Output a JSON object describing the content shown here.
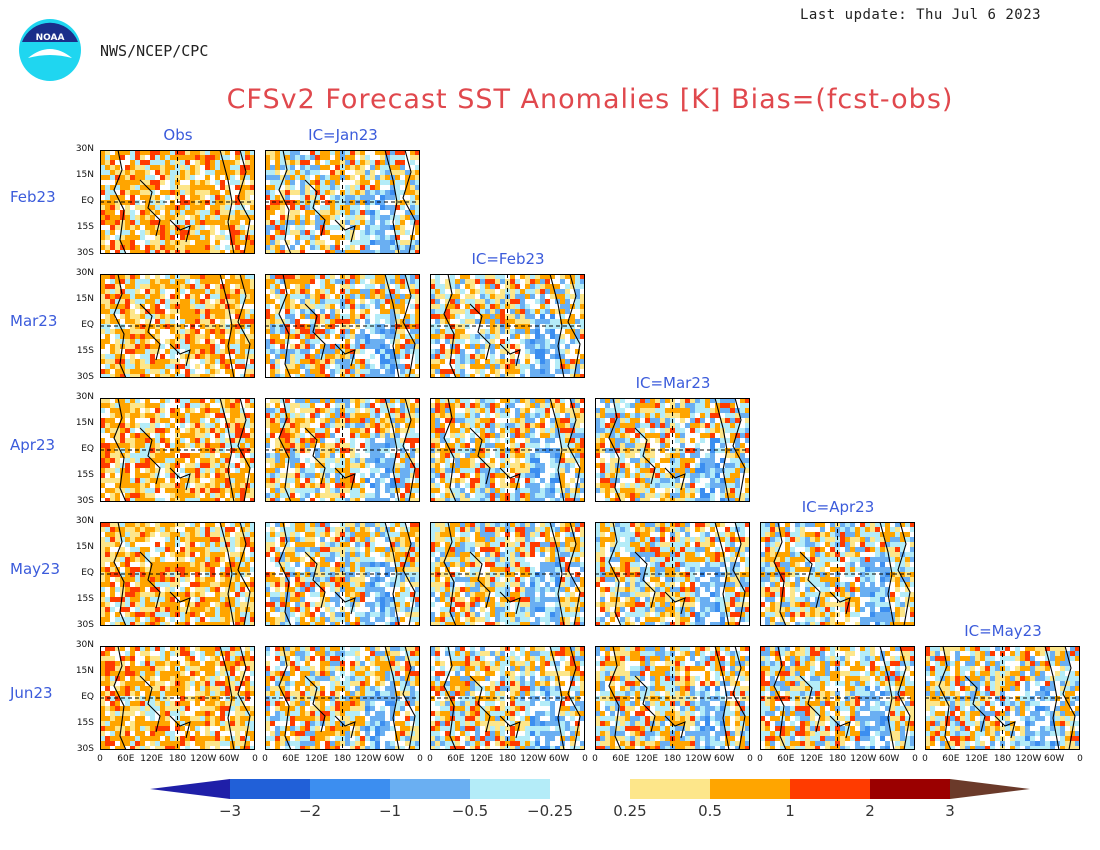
{
  "header": {
    "last_update": "Last update: Thu Jul 6 2023",
    "org": "NWS/NCEP/CPC",
    "title": "CFSv2 Forecast SST Anomalies [K] Bias=(fcst-obs)",
    "logo_text": "NOAA"
  },
  "chart_data": {
    "type": "heatmap",
    "title": "CFSv2 Forecast SST Anomalies [K] Bias=(fcst-obs)",
    "columns": [
      "Obs",
      "IC=Jan23",
      "IC=Feb23",
      "IC=Mar23",
      "IC=Apr23",
      "IC=May23"
    ],
    "rows": [
      "Feb23",
      "Mar23",
      "Apr23",
      "May23",
      "Jun23"
    ],
    "y_ticks": [
      "30N",
      "15N",
      "EQ",
      "15S",
      "30S"
    ],
    "x_ticks": [
      "0",
      "60E",
      "120E",
      "180",
      "120W",
      "60W",
      "0"
    ],
    "panels_present": [
      [
        "Feb23",
        "Obs"
      ],
      [
        "Feb23",
        "IC=Jan23"
      ],
      [
        "Mar23",
        "Obs"
      ],
      [
        "Mar23",
        "IC=Jan23"
      ],
      [
        "Mar23",
        "IC=Feb23"
      ],
      [
        "Apr23",
        "Obs"
      ],
      [
        "Apr23",
        "IC=Jan23"
      ],
      [
        "Apr23",
        "IC=Feb23"
      ],
      [
        "Apr23",
        "IC=Mar23"
      ],
      [
        "May23",
        "Obs"
      ],
      [
        "May23",
        "IC=Jan23"
      ],
      [
        "May23",
        "IC=Feb23"
      ],
      [
        "May23",
        "IC=Mar23"
      ],
      [
        "May23",
        "IC=Apr23"
      ],
      [
        "Jun23",
        "Obs"
      ],
      [
        "Jun23",
        "IC=Jan23"
      ],
      [
        "Jun23",
        "IC=Feb23"
      ],
      [
        "Jun23",
        "IC=Mar23"
      ],
      [
        "Jun23",
        "IC=Apr23"
      ],
      [
        "Jun23",
        "IC=May23"
      ]
    ],
    "colorbar": {
      "labels": [
        "−3",
        "−2",
        "−1",
        "−0.5",
        "−0.25",
        "0.25",
        "0.5",
        "1",
        "2",
        "3"
      ],
      "colors": [
        "#1f1fa8",
        "#2160d8",
        "#3c8ef0",
        "#6aaff2",
        "#b4ecf8",
        "#ffffff",
        "#fde68a",
        "#ffa500",
        "#ff3b00",
        "#9b0000",
        "#6b3a2a"
      ]
    }
  }
}
